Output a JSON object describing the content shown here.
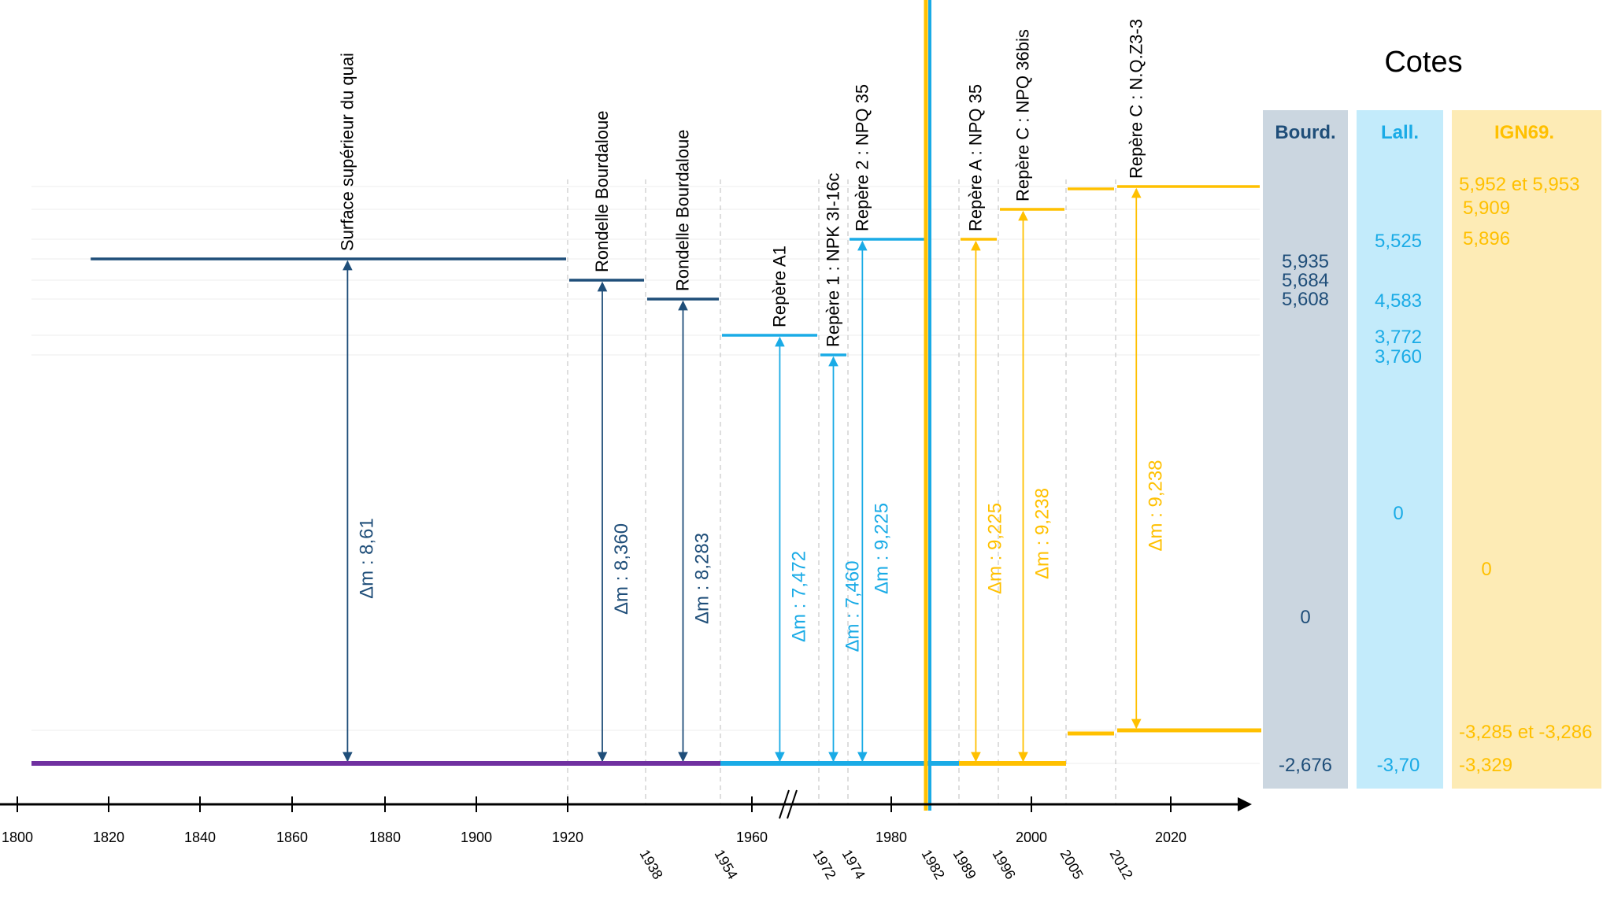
{
  "title": "Cotes",
  "colors": {
    "bourd": "#1f4e79",
    "lall": "#1aabe6",
    "ign": "#ffc000",
    "ground": "#7030a0",
    "bourd_panel": "#cbd6e0",
    "lall_panel": "#c3ebfb",
    "ign_panel": "#fdebb5",
    "dash": "#c8c8c8",
    "axis": "#000000"
  },
  "columns": [
    {
      "key": "bourd",
      "header": "Bourd.",
      "values": [
        "5,935",
        "5,684",
        "5,608",
        "0",
        "-2,676"
      ]
    },
    {
      "key": "lall",
      "header": "Lall.",
      "values": [
        "5,525",
        "4,583",
        "3,772",
        "3,760",
        "0",
        "-3,70"
      ]
    },
    {
      "key": "ign",
      "header": "IGN69.",
      "values": [
        "5,952 et 5,953",
        "5,909",
        "5,896",
        "0",
        "-3,285 et -3,286",
        "-3,329"
      ]
    }
  ],
  "chart_data": {
    "type": "timeline",
    "x_axis": {
      "range": [
        1800,
        2032
      ],
      "break_between": [
        1960,
        1970
      ],
      "ticks": [
        "1800",
        "1820",
        "1840",
        "1860",
        "1880",
        "1900",
        "1920",
        "1960",
        "1980",
        "2000",
        "2020"
      ],
      "extra_ticks": [
        "1938",
        "1954",
        "1972",
        "1974",
        "1982",
        "1989",
        "1996",
        "2005",
        "2012"
      ]
    },
    "reference_lines": [
      {
        "label": "Surface supérieur du quai",
        "system": "bourd",
        "delta": "Δm : 8,61",
        "top_level": "5,935",
        "start": 1816,
        "end": 1920,
        "arrow_at": 1872
      },
      {
        "label": "Rondelle Bourdaloue",
        "system": "bourd",
        "delta": "Δm : 8,360",
        "top_level": "5,684",
        "start": 1920,
        "end": 1938,
        "arrow_at": 1928
      },
      {
        "label": "Rondelle Bourdaloue",
        "system": "bourd",
        "delta": "Δm : 8,283",
        "top_level": "5,608",
        "start": 1938,
        "end": 1954,
        "arrow_at": 1946
      },
      {
        "label": "Repère A1",
        "system": "lall",
        "delta": "Δm : 7,472",
        "top_level": "3,772",
        "start": 1954,
        "end": 1972,
        "arrow_at": 1965
      },
      {
        "label": "Repère 1 : NPK 3I-16c",
        "system": "lall",
        "delta": "Δm : 7,460",
        "top_level": "3,760",
        "start": 1972,
        "end": 1974,
        "arrow_at": 1973
      },
      {
        "label": "Repère 2 : NPQ 35",
        "system": "lall",
        "delta": "Δm : 9,225",
        "top_level": "5,525",
        "start": 1974,
        "end": 1982,
        "arrow_at": 1976
      },
      {
        "label": "Repère A : NPQ 35",
        "system": "ign",
        "delta": "Δm : 9,225",
        "top_level": "5,896",
        "start": 1989,
        "end": 1996,
        "arrow_at": 1992
      },
      {
        "label": "Repère C : NPQ 36bis",
        "system": "ign",
        "delta": "Δm : 9,238",
        "top_level": "5,909",
        "start": 1996,
        "end": 2005,
        "arrow_at": 1999
      },
      {
        "label": "Repère C : N.Q.Z3-3",
        "system": "ign",
        "delta": "Δm : 9,238",
        "top_level": "5,952 et 5,953",
        "start": 2012,
        "end": 2032,
        "arrow_at": 2015
      }
    ],
    "zero_levels": {
      "bourd": "-2,676",
      "lall": "-3,70",
      "ign": "-3,329"
    },
    "change_year": 1982
  }
}
